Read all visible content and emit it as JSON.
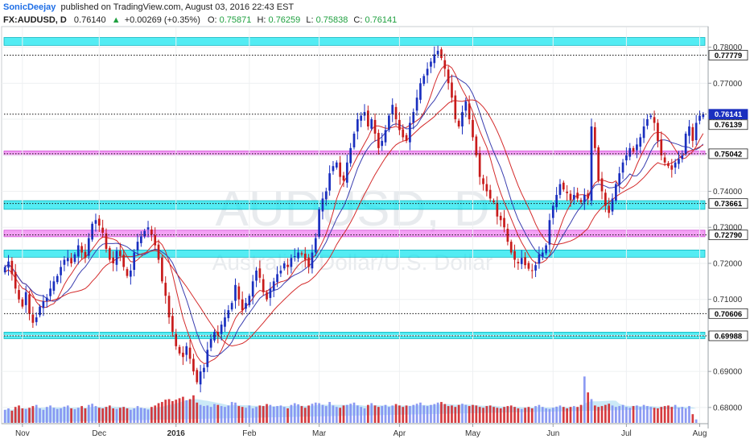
{
  "header": {
    "author": "SonicDeejay",
    "publish_text": "published on TradingView.com, August 03, 2016 22:43 EST",
    "symbol": "FX:AUDUSD, D",
    "last": "0.76140",
    "change": "+0.00269 (+0.35%)",
    "o_label": "O:",
    "o": "0.75871",
    "h_label": "H:",
    "h": "0.76259",
    "l_label": "L:",
    "l": "0.75838",
    "c_label": "C:",
    "c": "0.76141"
  },
  "watermark": {
    "symbol": "AUDUSD, D",
    "description": "Australian Dollar/U.S. Dollar"
  },
  "colors": {
    "up": "#1a2fbf",
    "down": "#c81b1b",
    "zone_cyan": "#19e6ef",
    "zone_magenta": "#ee6ef0",
    "ma_red": "#d42b2b",
    "ma_blue": "#3b3fb0",
    "vol_up": "#7f8ff2",
    "vol_down": "#d2262a",
    "vol_area": "#a9daf2",
    "author": "#1e6ee6",
    "positive": "#20a040"
  },
  "chart_data": {
    "type": "candlestick",
    "y_scale": {
      "min": 0.6755,
      "max": 0.7855
    },
    "y_ticks": [
      "0.78000",
      "0.77000",
      "0.76000",
      "0.75000",
      "0.74000",
      "0.73000",
      "0.72000",
      "0.71000",
      "0.70000",
      "0.69000",
      "0.68000"
    ],
    "x_labels": [
      {
        "label": "Nov",
        "idx": 5
      },
      {
        "label": "Dec",
        "idx": 27
      },
      {
        "label": "2016",
        "idx": 49
      },
      {
        "label": "Feb",
        "idx": 70
      },
      {
        "label": "Mar",
        "idx": 90
      },
      {
        "label": "Apr",
        "idx": 113
      },
      {
        "label": "May",
        "idx": 134
      },
      {
        "label": "Jun",
        "idx": 157
      },
      {
        "label": "Jul",
        "idx": 178
      },
      {
        "label": "Aug",
        "idx": 199
      }
    ],
    "zones": [
      {
        "color": "cyan",
        "y0": 0.7805,
        "y1": 0.7827
      },
      {
        "color": "magenta",
        "y0": 0.75,
        "y1": 0.7512
      },
      {
        "color": "cyan",
        "y0": 0.735,
        "y1": 0.7374
      },
      {
        "color": "magenta",
        "y0": 0.7274,
        "y1": 0.7292
      },
      {
        "color": "cyan",
        "y0": 0.7217,
        "y1": 0.7237
      },
      {
        "color": "cyan",
        "y0": 0.6991,
        "y1": 0.7009
      }
    ],
    "levels": [
      {
        "value": 0.77779,
        "label": "0.77779",
        "style": "dotted",
        "bg": "#ffffff",
        "fg": "#000000"
      },
      {
        "value": 0.76141,
        "label": "0.76141",
        "style": "dotted",
        "bg": "#1a2fbf",
        "fg": "#ffffff"
      },
      {
        "value": 0.76139,
        "label": "0.76139",
        "style": "none",
        "bg": "#ffffff",
        "fg": "#000000"
      },
      {
        "value": 0.75042,
        "label": "0.75042",
        "style": "dotted",
        "bg": "#ffffff",
        "fg": "#000000"
      },
      {
        "value": 0.73661,
        "label": "0.73661",
        "style": "dotted",
        "bg": "#ffffff",
        "fg": "#000000"
      },
      {
        "value": 0.7279,
        "label": "0.72790",
        "style": "dotted",
        "bg": "#ffffff",
        "fg": "#000000"
      },
      {
        "value": 0.70606,
        "label": "0.70606",
        "style": "dotted",
        "bg": "#ffffff",
        "fg": "#000000"
      },
      {
        "value": 0.69988,
        "label": "0.69988",
        "style": "dotted",
        "bg": "#ffffff",
        "fg": "#000000"
      }
    ],
    "closes": [
      0.719,
      0.7205,
      0.717,
      0.713,
      0.71,
      0.708,
      0.712,
      0.706,
      0.7035,
      0.705,
      0.708,
      0.7095,
      0.7105,
      0.713,
      0.715,
      0.7165,
      0.719,
      0.721,
      0.7215,
      0.72,
      0.7225,
      0.725,
      0.723,
      0.7215,
      0.727,
      0.731,
      0.732,
      0.7305,
      0.7285,
      0.724,
      0.721,
      0.72,
      0.7235,
      0.722,
      0.719,
      0.7165,
      0.718,
      0.723,
      0.726,
      0.7275,
      0.729,
      0.73,
      0.728,
      0.725,
      0.721,
      0.715,
      0.711,
      0.705,
      0.701,
      0.697,
      0.695,
      0.694,
      0.697,
      0.6935,
      0.69,
      0.687,
      0.69,
      0.691,
      0.696,
      0.699,
      0.701,
      0.7,
      0.703,
      0.705,
      0.707,
      0.709,
      0.714,
      0.71,
      0.707,
      0.709,
      0.711,
      0.715,
      0.718,
      0.716,
      0.712,
      0.71,
      0.713,
      0.715,
      0.717,
      0.718,
      0.72,
      0.719,
      0.7215,
      0.722,
      0.723,
      0.7225,
      0.721,
      0.719,
      0.723,
      0.727,
      0.735,
      0.738,
      0.74,
      0.745,
      0.747,
      0.748,
      0.744,
      0.743,
      0.748,
      0.752,
      0.756,
      0.76,
      0.761,
      0.762,
      0.758,
      0.76,
      0.756,
      0.752,
      0.754,
      0.757,
      0.761,
      0.764,
      0.76,
      0.757,
      0.755,
      0.754,
      0.759,
      0.762,
      0.766,
      0.77,
      0.772,
      0.774,
      0.776,
      0.778,
      0.779,
      0.777,
      0.774,
      0.77,
      0.766,
      0.76,
      0.758,
      0.762,
      0.765,
      0.76,
      0.755,
      0.75,
      0.744,
      0.742,
      0.74,
      0.738,
      0.737,
      0.733,
      0.732,
      0.73,
      0.726,
      0.723,
      0.721,
      0.72,
      0.7215,
      0.7195,
      0.7185,
      0.718,
      0.7195,
      0.7225,
      0.723,
      0.725,
      0.732,
      0.736,
      0.739,
      0.742,
      0.7405,
      0.7395,
      0.7375,
      0.739,
      0.738,
      0.737,
      0.739,
      0.738,
      0.758,
      0.752,
      0.743,
      0.74,
      0.736,
      0.734,
      0.738,
      0.742,
      0.745,
      0.748,
      0.75,
      0.752,
      0.751,
      0.753,
      0.755,
      0.758,
      0.76,
      0.761,
      0.759,
      0.754,
      0.75,
      0.748,
      0.747,
      0.746,
      0.748,
      0.749,
      0.75,
      0.756,
      0.758,
      0.754,
      0.759,
      0.761,
      0.7614
    ],
    "volume_ratio": [
      0.45,
      0.5,
      0.42,
      0.55,
      0.6,
      0.5,
      0.48,
      0.52,
      0.58,
      0.62,
      0.5,
      0.45,
      0.55,
      0.6,
      0.52,
      0.48,
      0.5,
      0.56,
      0.6,
      0.5,
      0.47,
      0.52,
      0.58,
      0.5,
      0.62,
      0.66,
      0.58,
      0.52,
      0.5,
      0.55,
      0.6,
      0.5,
      0.48,
      0.52,
      0.55,
      0.5,
      0.45,
      0.5,
      0.58,
      0.52,
      0.5,
      0.46,
      0.55,
      0.6,
      0.68,
      0.72,
      0.8,
      0.82,
      0.75,
      0.8,
      0.85,
      0.9,
      0.78,
      0.82,
      0.95,
      0.7,
      0.62,
      0.58,
      0.6,
      0.55,
      0.65,
      0.62,
      0.58,
      0.55,
      0.6,
      0.72,
      0.7,
      0.58,
      0.55,
      0.52,
      0.6,
      0.5,
      0.55,
      0.6,
      0.58,
      0.65,
      0.62,
      0.56,
      0.58,
      0.6,
      0.55,
      0.5,
      0.62,
      0.68,
      0.64,
      0.58,
      0.52,
      0.6,
      0.66,
      0.7,
      0.68,
      0.62,
      0.58,
      0.72,
      0.6,
      0.55,
      0.52,
      0.6,
      0.62,
      0.66,
      0.7,
      0.6,
      0.55,
      0.5,
      0.62,
      0.68,
      0.6,
      0.55,
      0.58,
      0.62,
      0.55,
      0.6,
      0.65,
      0.6,
      0.55,
      0.6,
      0.58,
      0.62,
      0.66,
      0.7,
      0.6,
      0.58,
      0.62,
      0.65,
      0.7,
      0.72,
      0.65,
      0.58,
      0.6,
      0.55,
      0.62,
      0.66,
      0.62,
      0.58,
      0.62,
      0.6,
      0.55,
      0.52,
      0.58,
      0.6,
      0.55,
      0.52,
      0.5,
      0.55,
      0.58,
      0.6,
      0.55,
      0.5,
      0.48,
      0.52,
      0.55,
      0.5,
      0.58,
      0.62,
      0.55,
      0.5,
      0.48,
      0.52,
      0.56,
      0.6,
      0.55,
      0.5,
      0.55,
      0.58,
      0.55,
      0.62,
      1.6,
      1.05,
      0.82,
      0.6,
      0.55,
      0.58,
      0.62,
      0.66,
      0.6,
      0.55,
      0.58,
      0.62,
      0.55,
      0.52,
      0.58,
      0.6,
      0.55,
      0.62,
      0.58,
      0.55,
      0.52,
      0.5,
      0.55,
      0.58,
      0.6,
      0.55,
      0.62,
      0.52,
      0.55,
      0.5,
      0.58,
      0.3,
      0.12
    ]
  }
}
